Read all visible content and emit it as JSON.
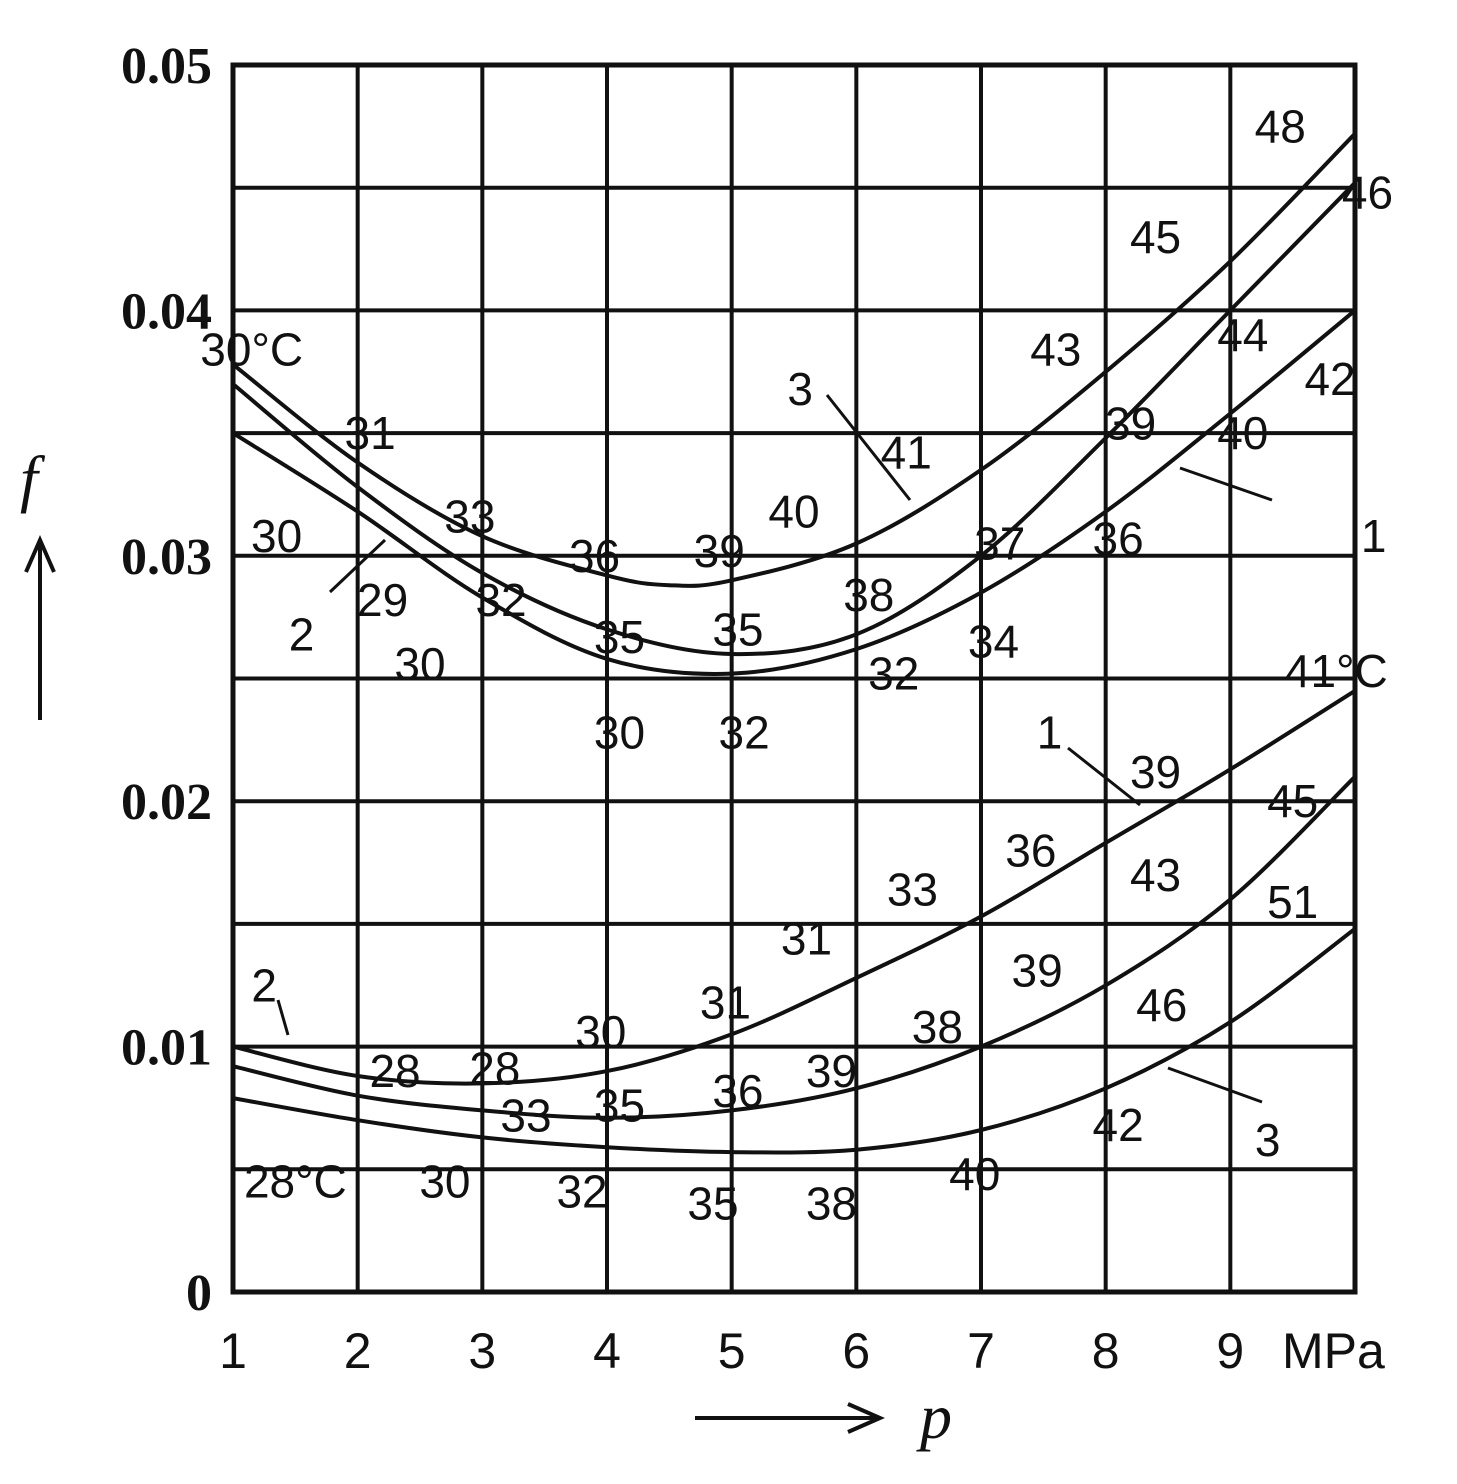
{
  "chart_data": {
    "type": "line",
    "title": "",
    "xlabel": "p",
    "ylabel": "f",
    "xunit": "MPa",
    "xlim": [
      1,
      10
    ],
    "ylim": [
      0,
      0.05
    ],
    "grid": true,
    "x_ticks": [
      "1",
      "2",
      "3",
      "4",
      "5",
      "6",
      "7",
      "8",
      "9"
    ],
    "y_ticks": [
      "0",
      "0.01",
      "0.02",
      "0.03",
      "0.04",
      "0.05"
    ],
    "series": [
      {
        "group": "upper",
        "curve": "3",
        "x": [
          1,
          2,
          3,
          4,
          4.5,
          5,
          6,
          7,
          8,
          9,
          10
        ],
        "y": [
          0.0378,
          0.0338,
          0.0308,
          0.0292,
          0.0288,
          0.029,
          0.0305,
          0.0335,
          0.0375,
          0.042,
          0.0472
        ]
      },
      {
        "group": "upper",
        "curve": "2",
        "x": [
          1,
          2,
          3,
          4,
          5,
          6,
          7,
          8,
          9,
          10
        ],
        "y": [
          0.037,
          0.0328,
          0.0293,
          0.027,
          0.026,
          0.0268,
          0.03,
          0.0348,
          0.04,
          0.0452
        ]
      },
      {
        "group": "upper",
        "curve": "1",
        "x": [
          1,
          2,
          3,
          4,
          5,
          6,
          7,
          8,
          9,
          10
        ],
        "y": [
          0.035,
          0.0318,
          0.0283,
          0.0258,
          0.0252,
          0.0262,
          0.0285,
          0.0318,
          0.0358,
          0.04
        ]
      },
      {
        "group": "lower",
        "curve": "1",
        "x": [
          1,
          2,
          3,
          4,
          5,
          6,
          7,
          8,
          9,
          10
        ],
        "y": [
          0.01,
          0.0088,
          0.0085,
          0.009,
          0.0105,
          0.0128,
          0.0153,
          0.0183,
          0.0213,
          0.0245
        ]
      },
      {
        "group": "lower",
        "curve": "2",
        "x": [
          1,
          2,
          3,
          4,
          5,
          6,
          7,
          8,
          9,
          10
        ],
        "y": [
          0.0092,
          0.008,
          0.0074,
          0.0071,
          0.0074,
          0.0083,
          0.01,
          0.0125,
          0.016,
          0.021
        ]
      },
      {
        "group": "lower",
        "curve": "3",
        "x": [
          1,
          2,
          3,
          4,
          5,
          6,
          7,
          8,
          9,
          10
        ],
        "y": [
          0.0079,
          0.007,
          0.0063,
          0.0059,
          0.0057,
          0.0058,
          0.0066,
          0.0083,
          0.011,
          0.0148
        ]
      }
    ],
    "annotations": [
      {
        "text": "30°C",
        "x": 1.15,
        "y": 0.0384
      },
      {
        "text": "31",
        "x": 2.1,
        "y": 0.035
      },
      {
        "text": "33",
        "x": 2.9,
        "y": 0.0316
      },
      {
        "text": "36",
        "x": 3.9,
        "y": 0.03
      },
      {
        "text": "39",
        "x": 4.9,
        "y": 0.0302
      },
      {
        "text": "40",
        "x": 5.5,
        "y": 0.0318
      },
      {
        "text": "41",
        "x": 6.4,
        "y": 0.0342
      },
      {
        "text": "43",
        "x": 7.6,
        "y": 0.0384
      },
      {
        "text": "45",
        "x": 8.4,
        "y": 0.043
      },
      {
        "text": "48",
        "x": 9.4,
        "y": 0.0475
      },
      {
        "text": "46",
        "x": 10.1,
        "y": 0.0448
      },
      {
        "text": "44",
        "x": 9.1,
        "y": 0.039
      },
      {
        "text": "42",
        "x": 9.8,
        "y": 0.0372
      },
      {
        "text": "39",
        "x": 8.2,
        "y": 0.0354
      },
      {
        "text": "40",
        "x": 9.1,
        "y": 0.035
      },
      {
        "text": "37",
        "x": 7.15,
        "y": 0.0305
      },
      {
        "text": "36",
        "x": 8.1,
        "y": 0.0307
      },
      {
        "text": "38",
        "x": 6.1,
        "y": 0.0284
      },
      {
        "text": "34",
        "x": 7.1,
        "y": 0.0265
      },
      {
        "text": "35",
        "x": 5.05,
        "y": 0.027
      },
      {
        "text": "32",
        "x": 6.3,
        "y": 0.0252
      },
      {
        "text": "35",
        "x": 4.1,
        "y": 0.0267
      },
      {
        "text": "30",
        "x": 4.1,
        "y": 0.0228
      },
      {
        "text": "32",
        "x": 5.1,
        "y": 0.0228
      },
      {
        "text": "30",
        "x": 1.35,
        "y": 0.0308
      },
      {
        "text": "32",
        "x": 3.15,
        "y": 0.0282
      },
      {
        "text": "29",
        "x": 2.2,
        "y": 0.0282
      },
      {
        "text": "30",
        "x": 2.5,
        "y": 0.0256
      },
      {
        "text": "3",
        "x": 5.55,
        "y": 0.0368
      },
      {
        "text": "1",
        "x": 10.15,
        "y": 0.0308
      },
      {
        "text": "2",
        "x": 1.55,
        "y": 0.0268
      },
      {
        "text": "41°C",
        "x": 9.85,
        "y": 0.0253
      },
      {
        "text": "39",
        "x": 8.4,
        "y": 0.0212
      },
      {
        "text": "45",
        "x": 9.5,
        "y": 0.02
      },
      {
        "text": "36",
        "x": 7.4,
        "y": 0.018
      },
      {
        "text": "43",
        "x": 8.4,
        "y": 0.017
      },
      {
        "text": "33",
        "x": 6.45,
        "y": 0.0164
      },
      {
        "text": "51",
        "x": 9.5,
        "y": 0.0159
      },
      {
        "text": "31",
        "x": 5.6,
        "y": 0.0144
      },
      {
        "text": "39",
        "x": 7.45,
        "y": 0.0131
      },
      {
        "text": "31",
        "x": 4.95,
        "y": 0.0118
      },
      {
        "text": "46",
        "x": 8.45,
        "y": 0.0117
      },
      {
        "text": "30",
        "x": 3.95,
        "y": 0.0106
      },
      {
        "text": "38",
        "x": 6.65,
        "y": 0.0108
      },
      {
        "text": "28",
        "x": 2.3,
        "y": 0.009
      },
      {
        "text": "28",
        "x": 3.1,
        "y": 0.0091
      },
      {
        "text": "39",
        "x": 5.8,
        "y": 0.009
      },
      {
        "text": "36",
        "x": 5.05,
        "y": 0.0082
      },
      {
        "text": "35",
        "x": 4.1,
        "y": 0.0076
      },
      {
        "text": "33",
        "x": 3.35,
        "y": 0.0072
      },
      {
        "text": "42",
        "x": 8.1,
        "y": 0.0068
      },
      {
        "text": "28°C",
        "x": 1.5,
        "y": 0.0045
      },
      {
        "text": "30",
        "x": 2.7,
        "y": 0.0045
      },
      {
        "text": "32",
        "x": 3.8,
        "y": 0.0041
      },
      {
        "text": "35",
        "x": 4.85,
        "y": 0.0036
      },
      {
        "text": "38",
        "x": 5.8,
        "y": 0.0036
      },
      {
        "text": "40",
        "x": 6.95,
        "y": 0.0048
      },
      {
        "text": "2",
        "x": 1.25,
        "y": 0.0125
      },
      {
        "text": "1",
        "x": 7.55,
        "y": 0.0228
      },
      {
        "text": "3",
        "x": 9.3,
        "y": 0.0062
      }
    ]
  }
}
